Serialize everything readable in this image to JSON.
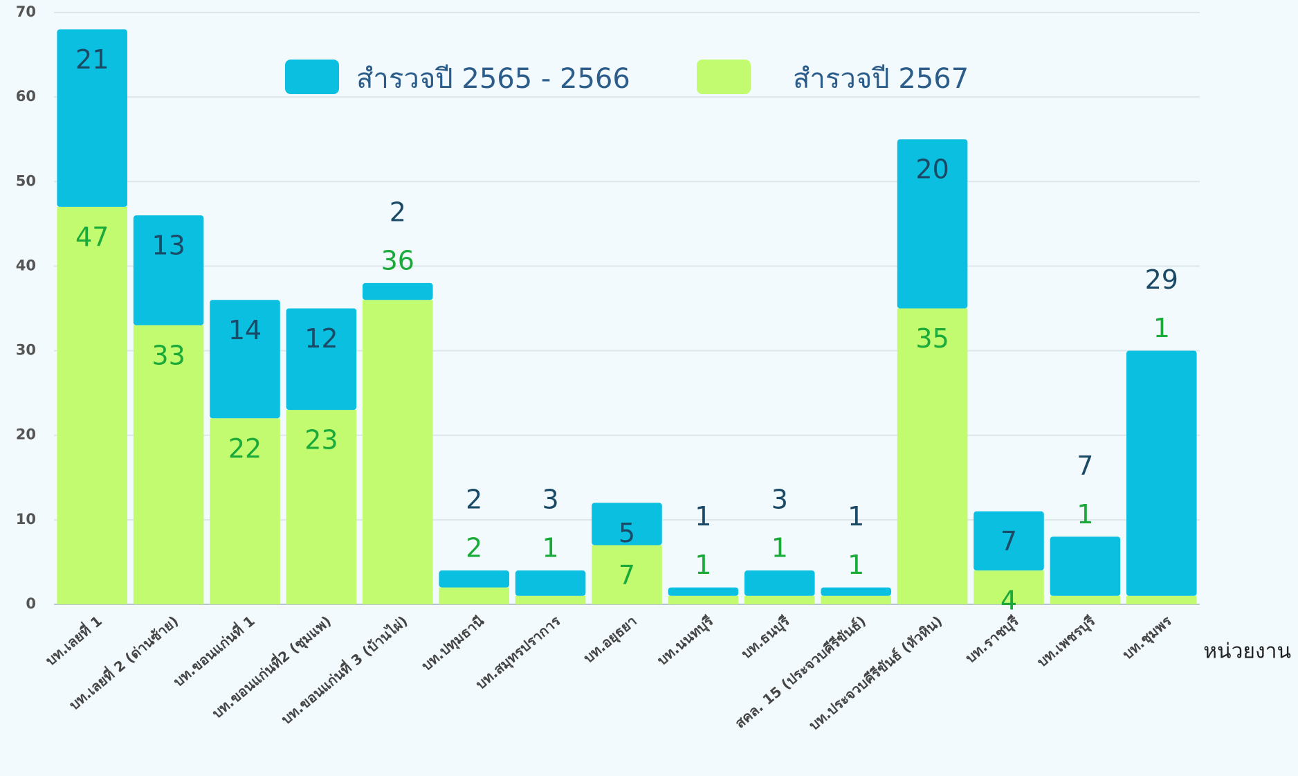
{
  "chart_data": {
    "type": "stacked_bar",
    "x_label": "หน่วยงาน",
    "categories": [
      "บท.เลยที่ 1",
      "บท.เลยที่ 2 (ด่านซ้าย)",
      "บท.ขอนแก่นที่ 1",
      "บท.ขอนแก่นที่2 (ชุมแพ)",
      "บท.ขอนแก่นที่ 3 (บ้านไผ่)",
      "บท.ปทุมธานี",
      "บท.สมุทรปราการ",
      "บท.อยุธยา",
      "บท.นนทบุรี",
      "บท.ธนบุรี",
      "สคล. 15 (ประจวบคีรีขันธ์)",
      "บท.ประจวบคีรีขันธ์ (หัวหิน)",
      "บท.ราชบุรี",
      "บท.เพชรบุรี",
      "บท.ชุมพร"
    ],
    "series": [
      {
        "name": "สำรวจปี 2567",
        "color": "#c2fb6f",
        "label_color": "#1aaa3a",
        "values": [
          47,
          33,
          22,
          23,
          36,
          2,
          1,
          7,
          1,
          1,
          1,
          35,
          4,
          1,
          1
        ]
      },
      {
        "name": "สำรวจปี 2565 - 2566",
        "color": "#0bbfe0",
        "label_color": "#1b4a66",
        "values": [
          21,
          13,
          14,
          12,
          2,
          2,
          3,
          5,
          1,
          3,
          1,
          20,
          7,
          7,
          29
        ]
      }
    ],
    "ylim": [
      0,
      70
    ],
    "yticks": [
      0,
      10,
      20,
      30,
      40,
      50,
      60,
      70
    ],
    "grid": true
  }
}
